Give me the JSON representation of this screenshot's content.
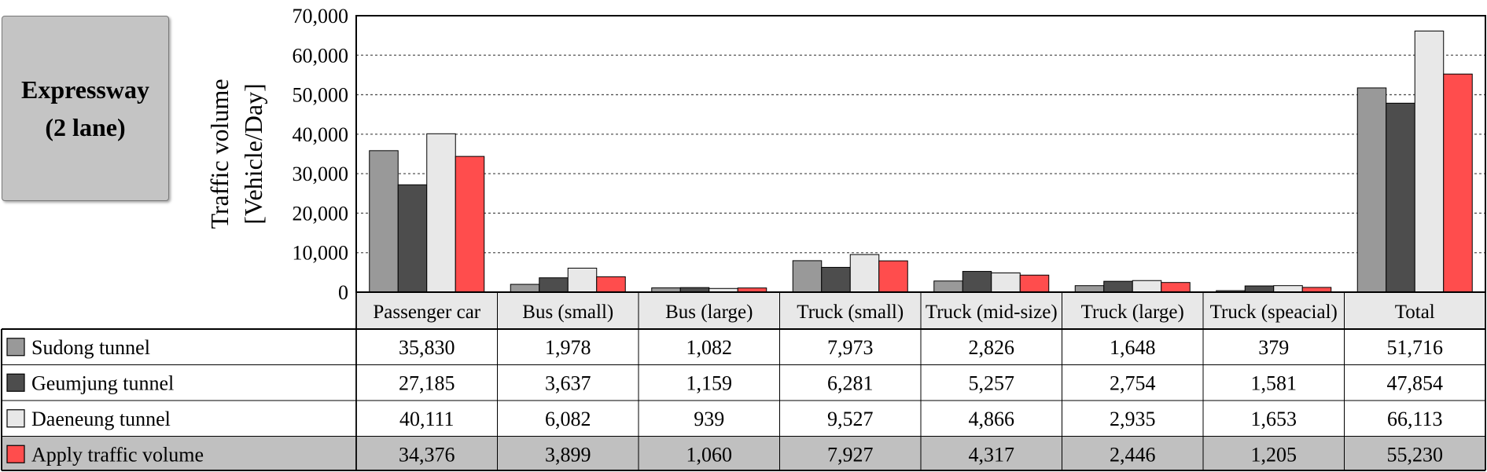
{
  "badge": {
    "line1": "Expressway",
    "line2": "(2 lane)"
  },
  "chart_data": {
    "type": "bar",
    "ylabel_line1": "Traffic volume",
    "ylabel_line2": "[Vehicle/Day]",
    "ylim": [
      0,
      70000
    ],
    "yticks": [
      "0",
      "10,000",
      "20,000",
      "30,000",
      "40,000",
      "50,000",
      "60,000",
      "70,000"
    ],
    "grid": true,
    "categories": [
      "Passenger car",
      "Bus (small)",
      "Bus (large)",
      "Truck (small)",
      "Truck (mid-size)",
      "Truck (large)",
      "Truck (speacial)",
      "Total"
    ],
    "series": [
      {
        "name": "Sudong tunnel",
        "color": "#999999",
        "values": [
          35830,
          1978,
          1082,
          7973,
          2826,
          1648,
          379,
          51716
        ],
        "labels": [
          "35,830",
          "1,978",
          "1,082",
          "7,973",
          "2,826",
          "1,648",
          "379",
          "51,716"
        ]
      },
      {
        "name": "Geumjung tunnel",
        "color": "#4d4d4d",
        "values": [
          27185,
          3637,
          1159,
          6281,
          5257,
          2754,
          1581,
          47854
        ],
        "labels": [
          "27,185",
          "3,637",
          "1,159",
          "6,281",
          "5,257",
          "2,754",
          "1,581",
          "47,854"
        ]
      },
      {
        "name": "Daeneung tunnel",
        "color": "#e8e8e8",
        "values": [
          40111,
          6082,
          939,
          9527,
          4866,
          2935,
          1653,
          66113
        ],
        "labels": [
          "40,111",
          "6,082",
          "939",
          "9,527",
          "4,866",
          "2,935",
          "1,653",
          "66,113"
        ]
      },
      {
        "name": "Apply traffic volume",
        "color": "#ff4d4d",
        "values": [
          34376,
          3899,
          1060,
          7927,
          4317,
          2446,
          1205,
          55230
        ],
        "labels": [
          "34,376",
          "3,899",
          "1,060",
          "7,927",
          "4,317",
          "2,446",
          "1,205",
          "55,230"
        ]
      }
    ],
    "colors": {
      "header_bg": "#e8e8e8",
      "highlight_row_bg": "#c0c0c0",
      "grid": "#555555"
    }
  }
}
